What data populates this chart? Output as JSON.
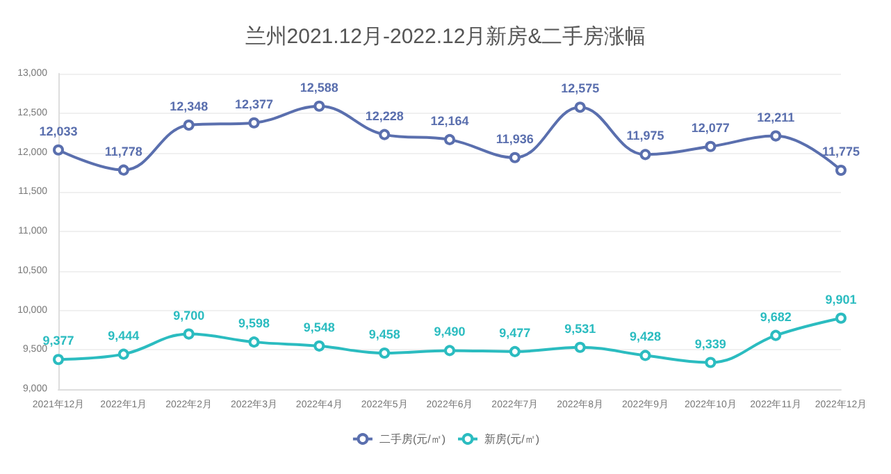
{
  "chart_data": {
    "type": "line",
    "title": "兰州2021.12月-2022.12月新房&二手房涨幅",
    "categories": [
      "2021年12月",
      "2022年1月",
      "2022年2月",
      "2022年3月",
      "2022年4月",
      "2022年5月",
      "2022年6月",
      "2022年7月",
      "2022年8月",
      "2022年9月",
      "2022年10月",
      "2022年11月",
      "2022年12月"
    ],
    "series": [
      {
        "name": "二手房(元/㎡)",
        "color": "#5a6fae",
        "values": [
          12033,
          11778,
          12348,
          12377,
          12588,
          12228,
          12164,
          11936,
          12575,
          11975,
          12077,
          12211,
          11775
        ],
        "value_labels": [
          "12,033",
          "11,778",
          "12,348",
          "12,377",
          "12,588",
          "12,228",
          "12,164",
          "11,936",
          "12,575",
          "11,975",
          "12,077",
          "12,211",
          "11,775"
        ]
      },
      {
        "name": "新房(元/㎡)",
        "color": "#2bbcc0",
        "values": [
          9377,
          9444,
          9700,
          9598,
          9548,
          9458,
          9490,
          9477,
          9531,
          9428,
          9339,
          9682,
          9901
        ],
        "value_labels": [
          "9,377",
          "9,444",
          "9,700",
          "9,598",
          "9,548",
          "9,458",
          "9,490",
          "9,477",
          "9,531",
          "9,428",
          "9,339",
          "9,682",
          "9,901"
        ]
      }
    ],
    "ylim": [
      9000,
      13000
    ],
    "yticks": [
      {
        "value": 9000,
        "label": "9,000"
      },
      {
        "value": 9500,
        "label": "9,500"
      },
      {
        "value": 10000,
        "label": "10,000"
      },
      {
        "value": 10500,
        "label": "10,500"
      },
      {
        "value": 11000,
        "label": "11,000"
      },
      {
        "value": 11500,
        "label": "11,500"
      },
      {
        "value": 12000,
        "label": "12,000"
      },
      {
        "value": 12500,
        "label": "12,500"
      },
      {
        "value": 13000,
        "label": "13,000"
      }
    ],
    "grid": "y",
    "legend": "bottom",
    "marker": "circle",
    "line_style": "solid"
  }
}
